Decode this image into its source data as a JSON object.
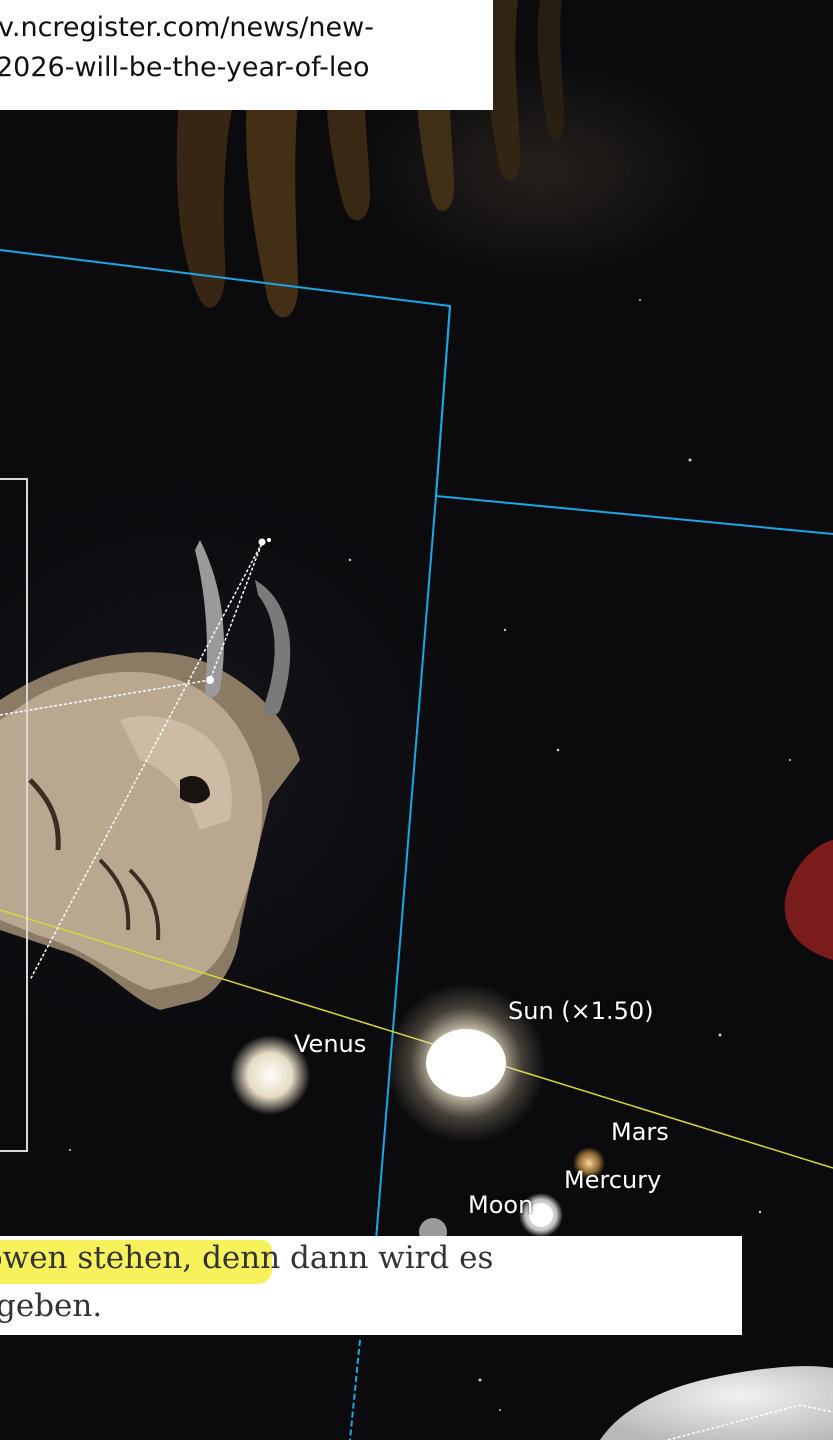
{
  "url": {
    "line1": "v.ncregister.com/news/new-",
    "line2": "2026-will-be-the-year-of-leo"
  },
  "sky_labels": {
    "sun": "Sun (×1.50)",
    "venus": "Venus",
    "mars": "Mars",
    "mercury": "Mercury",
    "moon": "Moon"
  },
  "quote": {
    "line1_highlighted": "öwen stehen,",
    "line1_rest": " denn dann wird es",
    "line2": "geben."
  },
  "colors": {
    "constellation_boundary": "#1aa7e6",
    "ecliptic": "#d8d83a",
    "highlight": "#f7f25c"
  }
}
